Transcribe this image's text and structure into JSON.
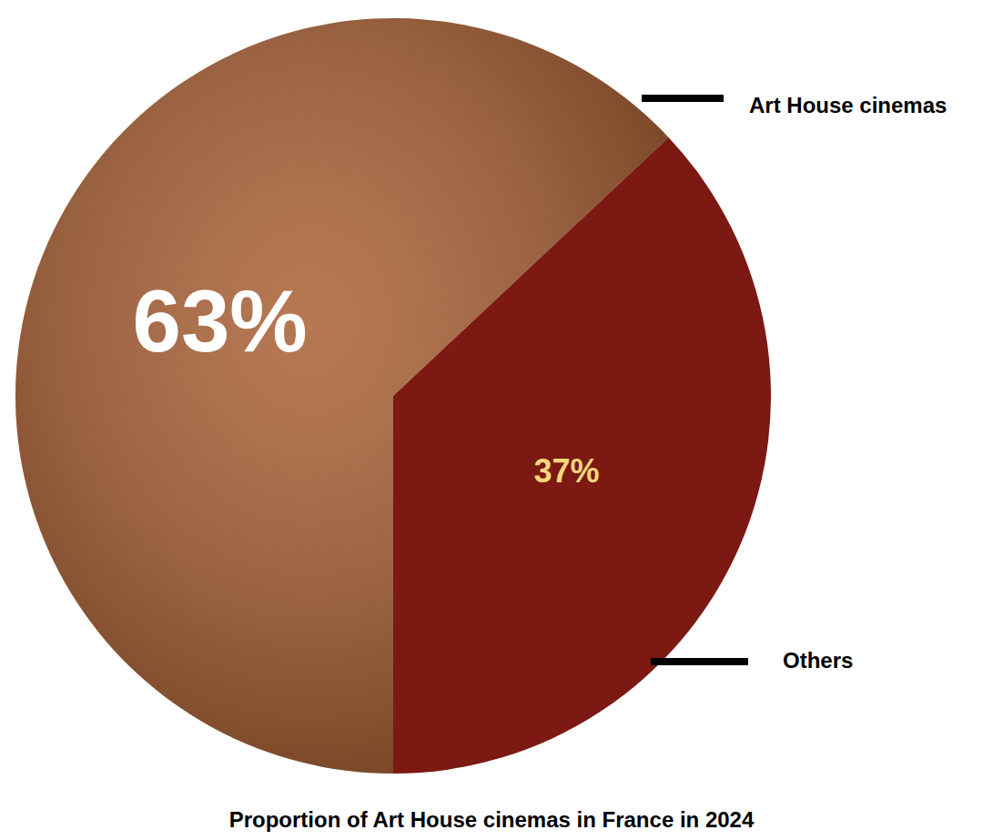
{
  "chart_data": {
    "type": "pie",
    "title": "Proportion of Art House cinemas in France in 2024",
    "categories": [
      "Art House cinemas",
      "Others"
    ],
    "values": [
      63,
      37
    ],
    "value_labels": [
      "63%",
      "37%"
    ],
    "colors": [
      "#a65a2c",
      "#7b1912"
    ],
    "data_labels": true
  }
}
